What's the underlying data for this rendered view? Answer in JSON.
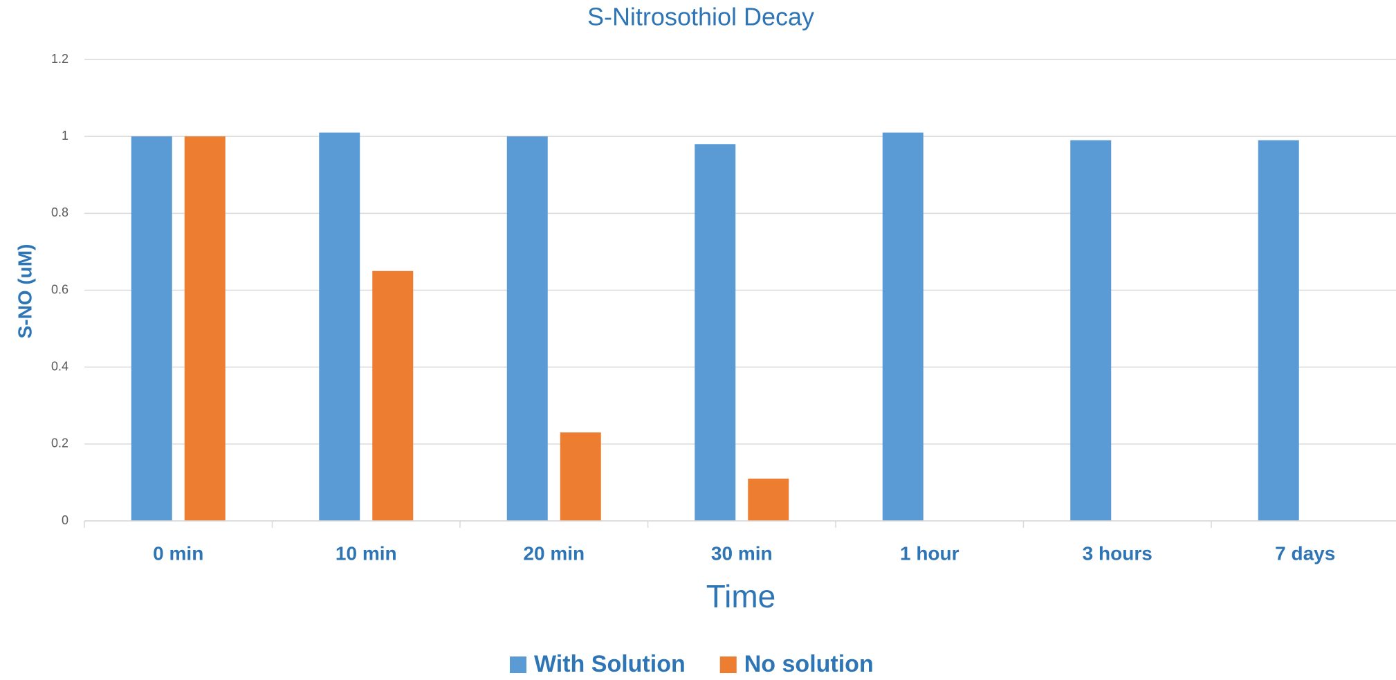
{
  "chart_data": {
    "type": "bar",
    "title": "S-Nitrosothiol Decay",
    "x_label": "Time",
    "y_label": "S-NO (uM)",
    "categories": [
      "0 min",
      "10 min",
      "20 min",
      "30 min",
      "1 hour",
      "3 hours",
      "7 days"
    ],
    "series": [
      {
        "name": "With Solution",
        "color": "#5b9bd5",
        "values": [
          1,
          1.01,
          1,
          0.98,
          1.01,
          0.99,
          0.99
        ]
      },
      {
        "name": "No solution",
        "color": "#ed7d31",
        "values": [
          1,
          0.65,
          0.23,
          0.11,
          null,
          null,
          null
        ]
      }
    ],
    "ylim": [
      0,
      1.2
    ],
    "yticks": [
      0,
      0.2,
      0.4,
      0.6,
      0.8,
      1,
      1.2
    ],
    "grid": true,
    "legend": "bottom"
  }
}
